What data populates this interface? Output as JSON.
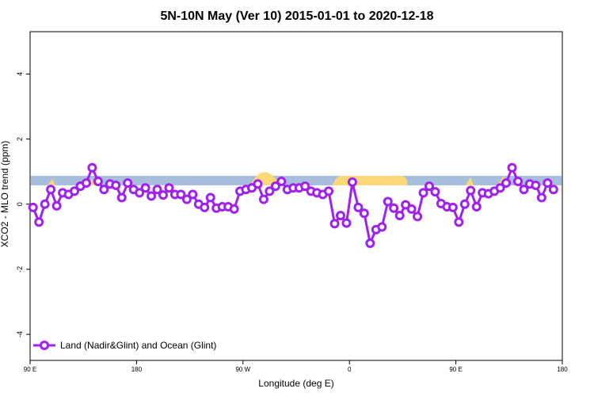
{
  "chart_data": {
    "type": "line",
    "title": "5N-10N May (Ver 10)   2015-01-01 to 2020-12-18",
    "x_label": "Longitude (deg E)",
    "y_label": "XCO2 - MLO trend (ppm)",
    "x": [
      92.5,
      97.5,
      102.5,
      107.5,
      112.5,
      117.5,
      122.5,
      127.5,
      132.5,
      137.5,
      142.5,
      147.5,
      152.5,
      157.5,
      162.5,
      167.5,
      172.5,
      177.5,
      182.5,
      187.5,
      192.5,
      197.5,
      202.5,
      207.5,
      212.5,
      217.5,
      222.5,
      227.5,
      232.5,
      237.5,
      242.5,
      247.5,
      252.5,
      257.5,
      262.5,
      267.5,
      272.5,
      277.5,
      282.5,
      287.5,
      292.5,
      297.5,
      302.5,
      307.5,
      312.5,
      317.5,
      322.5,
      327.5,
      332.5,
      337.5,
      342.5,
      347.5,
      352.5,
      357.5,
      362.5,
      367.5,
      372.5,
      377.5,
      382.5,
      387.5,
      392.5,
      397.5,
      402.5,
      407.5,
      412.5,
      417.5,
      422.5,
      427.5,
      432.5,
      437.5,
      442.5,
      447.5,
      452.5,
      457.5,
      462.5,
      467.5,
      472.5,
      477.5,
      482.5,
      487.5,
      492.5,
      497.5,
      502.5,
      507.5,
      512.5,
      517.5,
      522.5,
      527.5,
      532.5
    ],
    "series": [
      {
        "name": "Land (Nadir&Glint) and Ocean (Glint)",
        "color": "#a020f0",
        "values": [
          -0.1,
          -0.55,
          0,
          0.45,
          -0.05,
          0.35,
          0.3,
          0.4,
          0.55,
          0.65,
          1.12,
          0.7,
          0.45,
          0.62,
          0.58,
          0.2,
          0.65,
          0.45,
          0.35,
          0.5,
          0.25,
          0.45,
          0.28,
          0.5,
          0.3,
          0.3,
          0.15,
          0.3,
          0,
          -0.1,
          0.2,
          -0.12,
          -0.08,
          -0.08,
          -0.15,
          0.4,
          0.45,
          0.5,
          0.62,
          0.15,
          0.4,
          0.55,
          0.7,
          0.45,
          0.5,
          0.5,
          0.55,
          0.4,
          0.35,
          0.3,
          0.4,
          -0.6,
          -0.35,
          -0.58,
          0.68,
          -0.1,
          -0.28,
          -1.2,
          -0.78,
          -0.7,
          0.08,
          -0.12,
          -0.35,
          -0.02,
          -0.15,
          -0.38,
          0.35,
          0.55,
          0.38,
          0.02,
          -0.08,
          -0.1,
          -0.55,
          0,
          0.42,
          -0.08,
          0.35,
          0.32,
          0.4,
          0.5,
          0.65,
          1.12,
          0.7,
          0.45,
          0.62,
          0.58,
          0.2,
          0.65,
          0.45
        ]
      }
    ],
    "xlim": [
      90,
      540
    ],
    "xticks": [
      {
        "value": 90,
        "label": "90 E"
      },
      180,
      {
        "value": 270,
        "label": "90 W"
      },
      {
        "value": 360,
        "label": "0"
      },
      {
        "value": 450,
        "label": "90 E"
      },
      {
        "value": 540,
        "label": "180"
      }
    ],
    "ylim": [
      -4.8,
      5.3
    ],
    "yticks": [
      -4,
      -2,
      0,
      2,
      4
    ],
    "legend": "bottom-left"
  }
}
